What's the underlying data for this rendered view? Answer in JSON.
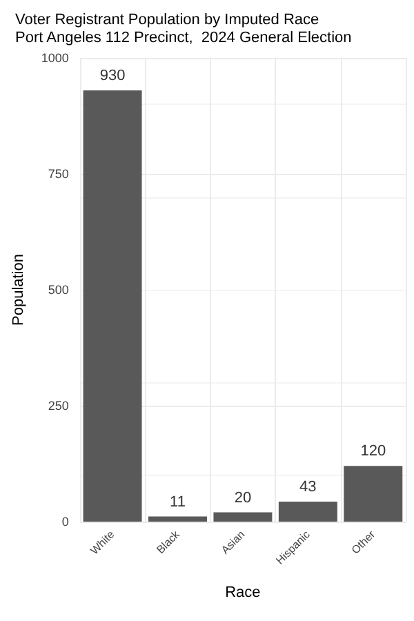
{
  "chart_data": {
    "type": "bar",
    "title": "Voter Registrant Population by Imputed Race",
    "subtitle": "Port Angeles 112 Precinct,  2024 General Election",
    "xlabel": "Race",
    "ylabel": "Population",
    "categories": [
      "White",
      "Black",
      "Asian",
      "Hispanic",
      "Other"
    ],
    "values": [
      930,
      11,
      20,
      43,
      120
    ],
    "color": "#595959",
    "ylim": [
      0,
      1000
    ],
    "yticks": [
      0,
      250,
      500,
      750,
      1000
    ],
    "grid": true,
    "data_labels": true
  }
}
